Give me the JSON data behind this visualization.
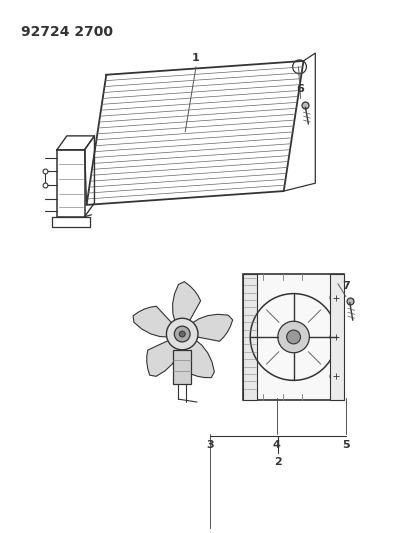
{
  "title": "92724 2700",
  "bg_color": "#ffffff",
  "line_color": "#333333",
  "title_fontsize": 10,
  "label_fontsize": 8,
  "fig_w": 3.93,
  "fig_h": 5.33,
  "dpi": 100
}
